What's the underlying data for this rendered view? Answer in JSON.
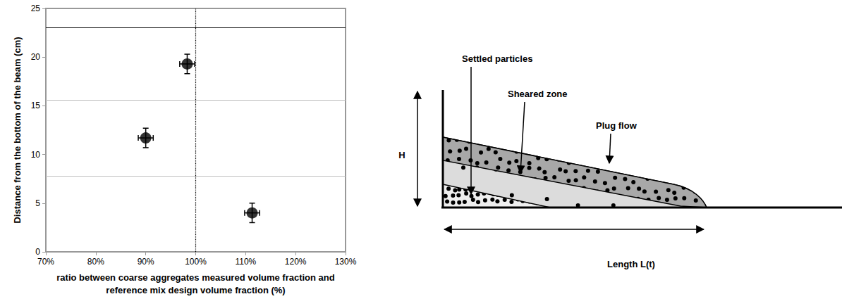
{
  "chart_data": {
    "type": "scatter",
    "x_label": "ratio between coarse aggregates measured volume fraction and reference mix design volume fraction (%)",
    "y_label": "Distance from the bottom of the beam (cm)",
    "x": [
      98.3,
      90,
      111.3
    ],
    "values": [
      19.3,
      11.7,
      4
    ],
    "x_error": [
      1.5,
      1.5,
      1.5
    ],
    "y_error": [
      1,
      1,
      1
    ],
    "color": "#000000",
    "marker": "circle",
    "xlim": [
      70,
      130
    ],
    "xticks": [
      {
        "value": 70,
        "label": "70%"
      },
      {
        "value": 80,
        "label": "80%"
      },
      {
        "value": 90,
        "label": "90%"
      },
      {
        "value": 100,
        "label": "100%"
      },
      {
        "value": 110,
        "label": "110%"
      },
      {
        "value": 120,
        "label": "120%"
      },
      {
        "value": 130,
        "label": "130%"
      }
    ],
    "ylim": [
      0,
      25
    ],
    "yticks": [
      0,
      5,
      10,
      15,
      20,
      25
    ],
    "grid": false,
    "hlines": [
      {
        "y": 23,
        "color": "#000000"
      },
      {
        "y": 15.6,
        "color": "#c0c0c0"
      },
      {
        "y": 7.8,
        "color": "#c0c0c0"
      }
    ],
    "vlines": [
      {
        "x": 100,
        "color": "#000000",
        "line_style": "dotted"
      }
    ]
  },
  "diagram": {
    "settled_label": "Settled particles",
    "sheared_label": "Sheared zone",
    "plug_label": "Plug flow",
    "height_label": "H",
    "length_label": "Length L(t)"
  }
}
